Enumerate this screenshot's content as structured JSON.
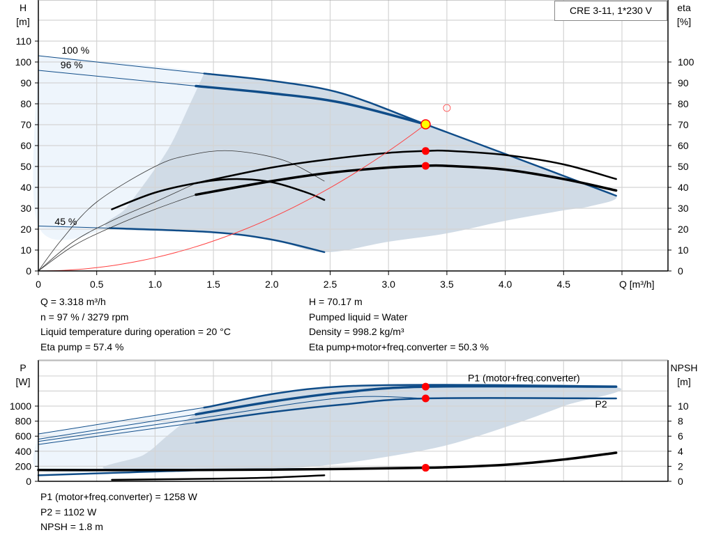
{
  "legend_box": "CRE 3-11, 1*230 V",
  "info_left": [
    "Q = 3.318 m³/h",
    "n = 97 % / 3279 rpm",
    "Liquid temperature during operation = 20 °C",
    "Eta pump = 57.4 %"
  ],
  "info_right": [
    "H = 70.17 m",
    "Pumped liquid = Water",
    "Density = 998.2 kg/m³",
    "Eta pump+motor+freq.converter = 50.3 %"
  ],
  "info_bottom": [
    "P1 (motor+freq.converter) = 1258 W",
    "P2 = 1102 W",
    "NPSH = 1.8 m"
  ],
  "colors": {
    "curve_blue": "#0f4c88",
    "area_dark": "#d0dbe6",
    "area_light": "#eef5fc",
    "duty_point": "#ffff00",
    "marker": "#ff0000",
    "system_curve": "#ff4040",
    "grid": "#d4d4d4"
  },
  "chart_data": [
    {
      "type": "line",
      "title": "",
      "ylabel": "H",
      "yunit": "[m]",
      "y2label": "eta",
      "y2unit": "[%]",
      "xlabel": "Q [m³/h]",
      "xlim": [
        0,
        5.4
      ],
      "ylim": [
        0,
        130
      ],
      "y2lim": [
        0,
        130
      ],
      "xticks": [
        "0",
        "0.5",
        "1.0",
        "1.5",
        "2.0",
        "2.5",
        "3.0",
        "3.5",
        "4.0",
        "4.5"
      ],
      "xtick_values": [
        0,
        0.5,
        1.0,
        1.5,
        2.0,
        2.5,
        3.0,
        3.5,
        4.0,
        4.5
      ],
      "yticks": [
        0,
        10,
        20,
        30,
        40,
        50,
        60,
        70,
        80,
        90,
        100,
        110
      ],
      "y2ticks": [
        0,
        10,
        20,
        30,
        40,
        50,
        60,
        70,
        80,
        90,
        100
      ],
      "grid": true,
      "curve_labels": [
        {
          "text": "100 %",
          "x": 0.2,
          "y": 104
        },
        {
          "text": "96 %",
          "x": 0.19,
          "y": 97
        },
        {
          "text": "45 %",
          "x": 0.14,
          "y": 22
        }
      ],
      "areas": [
        {
          "kind": "light",
          "points": [
            [
              0,
              103
            ],
            [
              1.42,
              94.5
            ],
            [
              1.3,
              80
            ],
            [
              1.13,
              60
            ],
            [
              0.95,
              45
            ],
            [
              0.75,
              30
            ],
            [
              0.61,
              20.5
            ],
            [
              0,
              21.5
            ]
          ]
        },
        {
          "kind": "dark",
          "points": [
            [
              1.42,
              94.5
            ],
            [
              2.0,
              91
            ],
            [
              2.6,
              85
            ],
            [
              3.318,
              70.17
            ],
            [
              4.0,
              56
            ],
            [
              4.5,
              45.5
            ],
            [
              4.95,
              36
            ],
            [
              4.73,
              31
            ],
            [
              4.5,
              29
            ],
            [
              4.0,
              24
            ],
            [
              3.5,
              18
            ],
            [
              3.0,
              14
            ],
            [
              2.45,
              9
            ],
            [
              2.0,
              15
            ],
            [
              1.5,
              18.5
            ],
            [
              0.61,
              20.5
            ],
            [
              0.75,
              30
            ],
            [
              0.95,
              45
            ],
            [
              1.13,
              60
            ],
            [
              1.3,
              80
            ]
          ]
        }
      ],
      "series": [
        {
          "id": "h-100-thin",
          "style": "blue-thin",
          "points": [
            [
              0,
              103
            ],
            [
              1.42,
              94.5
            ]
          ]
        },
        {
          "id": "h-100",
          "style": "blue",
          "points": [
            [
              1.42,
              94.5
            ],
            [
              2.0,
              91
            ],
            [
              2.6,
              85
            ],
            [
              3.318,
              70.17
            ],
            [
              4.0,
              56
            ],
            [
              4.5,
              45.5
            ],
            [
              4.95,
              36
            ]
          ]
        },
        {
          "id": "h-96-thin",
          "style": "blue-thin",
          "points": [
            [
              0,
              96
            ],
            [
              1.35,
              88.5
            ]
          ]
        },
        {
          "id": "h-96",
          "style": "blue-thick",
          "points": [
            [
              1.35,
              88.5
            ],
            [
              2.0,
              85
            ],
            [
              2.6,
              80.5
            ],
            [
              3.318,
              70.17
            ]
          ]
        },
        {
          "id": "h-45-thin",
          "style": "blue-thin",
          "points": [
            [
              0,
              21.5
            ],
            [
              0.61,
              20.5
            ]
          ]
        },
        {
          "id": "h-45",
          "style": "blue",
          "points": [
            [
              0.61,
              20.5
            ],
            [
              1.5,
              18.5
            ],
            [
              2.0,
              15
            ],
            [
              2.45,
              9
            ]
          ]
        },
        {
          "id": "eta-thin-a",
          "style": "black-hair",
          "points": [
            [
              0,
              0
            ],
            [
              0.2,
              15
            ],
            [
              0.5,
              33
            ],
            [
              1.0,
              50
            ],
            [
              1.3,
              55.5
            ],
            [
              1.65,
              57.5
            ],
            [
              2.1,
              53
            ],
            [
              2.45,
              43
            ]
          ]
        },
        {
          "id": "eta-thin-b",
          "style": "black-hair",
          "points": [
            [
              0,
              0
            ],
            [
              0.3,
              14
            ],
            [
              0.63,
              24
            ],
            [
              1.0,
              33
            ],
            [
              1.35,
              42
            ]
          ]
        },
        {
          "id": "eta-thin-c",
          "style": "black-hair",
          "points": [
            [
              0,
              0
            ],
            [
              0.3,
              12
            ],
            [
              0.63,
              21
            ],
            [
              1.0,
              29.5
            ],
            [
              1.35,
              36.5
            ]
          ]
        },
        {
          "id": "eta-45",
          "style": "black",
          "points": [
            [
              0.63,
              29.5
            ],
            [
              1.0,
              37.5
            ],
            [
              1.4,
              42.5
            ],
            [
              1.7,
              44
            ],
            [
              2.0,
              42.5
            ],
            [
              2.3,
              37.5
            ],
            [
              2.45,
              34
            ]
          ]
        },
        {
          "id": "eta-pump",
          "style": "black",
          "points": [
            [
              1.35,
              42
            ],
            [
              2.0,
              49.5
            ],
            [
              2.5,
              53.5
            ],
            [
              3.0,
              56.5
            ],
            [
              3.318,
              57.4
            ],
            [
              3.5,
              57.5
            ],
            [
              4.0,
              55.5
            ],
            [
              4.5,
              51
            ],
            [
              4.95,
              44
            ]
          ]
        },
        {
          "id": "eta-total",
          "style": "black-thick",
          "points": [
            [
              1.35,
              36.5
            ],
            [
              2.0,
              43
            ],
            [
              2.5,
              47
            ],
            [
              3.0,
              49.5
            ],
            [
              3.318,
              50.3
            ],
            [
              3.5,
              50.3
            ],
            [
              4.0,
              48.5
            ],
            [
              4.5,
              44
            ],
            [
              4.95,
              38.5
            ]
          ]
        },
        {
          "id": "system-curve",
          "style": "red",
          "quadratic_k": 6.374,
          "x_range": [
            0,
            3.318
          ]
        }
      ],
      "markers": [
        {
          "name": "duty-point",
          "x": 3.318,
          "y": 70.17,
          "kind": "yellow"
        },
        {
          "name": "eta-pump-point",
          "x": 3.318,
          "y": 57.4,
          "kind": "red"
        },
        {
          "name": "eta-total-point",
          "x": 3.318,
          "y": 50.3,
          "kind": "red"
        },
        {
          "name": "requested-point",
          "x": 3.5,
          "y": 78,
          "kind": "hollow"
        }
      ]
    },
    {
      "type": "line",
      "title": "",
      "ylabel": "P",
      "yunit": "[W]",
      "y2label": "NPSH",
      "y2unit": "[m]",
      "xlim": [
        0,
        5.4
      ],
      "ylim": [
        0,
        1600
      ],
      "y2lim": [
        0,
        16
      ],
      "yticks": [
        0,
        200,
        400,
        600,
        800,
        1000
      ],
      "y2ticks": [
        0,
        2,
        4,
        6,
        8,
        10
      ],
      "grid": true,
      "series_labels": [
        {
          "text": "P1 (motor+freq.converter)",
          "x": 3.68,
          "y": 1330
        },
        {
          "text": "P2",
          "x": 4.77,
          "y": 980
        }
      ],
      "areas": [
        {
          "kind": "light",
          "points": [
            [
              0,
              630
            ],
            [
              1.42,
              980
            ],
            [
              1.3,
              850
            ],
            [
              1.1,
              600
            ],
            [
              0.9,
              350
            ],
            [
              0.6,
              160
            ],
            [
              0,
              150
            ]
          ]
        },
        {
          "kind": "dark",
          "points": [
            [
              1.42,
              980
            ],
            [
              2.6,
              1262
            ],
            [
              4.9,
              1262
            ],
            [
              4.5,
              1000
            ],
            [
              4.0,
              720
            ],
            [
              3.5,
              480
            ],
            [
              3.0,
              330
            ],
            [
              2.5,
              220
            ],
            [
              2.0,
              170
            ],
            [
              0.6,
              160
            ],
            [
              0.9,
              350
            ],
            [
              1.1,
              600
            ],
            [
              1.3,
              850
            ]
          ]
        }
      ],
      "series": [
        {
          "id": "p1-100-thin",
          "style": "blue-thin",
          "points": [
            [
              0,
              630
            ],
            [
              1.42,
              980
            ]
          ]
        },
        {
          "id": "p1-100",
          "style": "blue",
          "points": [
            [
              1.42,
              980
            ],
            [
              2.6,
              1262
            ],
            [
              4.95,
              1262
            ]
          ]
        },
        {
          "id": "p1-96-thin",
          "style": "blue-thin",
          "points": [
            [
              0,
              560
            ],
            [
              1.35,
              890
            ]
          ]
        },
        {
          "id": "p1-96",
          "style": "blue-thick",
          "points": [
            [
              1.35,
              890
            ],
            [
              2.0,
              1060
            ],
            [
              2.6,
              1180
            ],
            [
              3.318,
              1258
            ],
            [
              4.95,
              1258
            ]
          ]
        },
        {
          "id": "p2-100-thin",
          "style": "blue-thin",
          "points": [
            [
              0,
              530
            ],
            [
              1.35,
              830
            ],
            [
              2.6,
              1110
            ],
            [
              3.318,
              1102
            ]
          ]
        },
        {
          "id": "p2-thin",
          "style": "blue-thin",
          "points": [
            [
              0,
              490
            ],
            [
              1.35,
              780
            ]
          ]
        },
        {
          "id": "p2",
          "style": "blue",
          "points": [
            [
              1.35,
              780
            ],
            [
              2.0,
              920
            ],
            [
              2.6,
              1020
            ],
            [
              3.318,
              1102
            ],
            [
              4.95,
              1102
            ]
          ]
        },
        {
          "id": "p1-45",
          "style": "blue",
          "points": [
            [
              0,
              80
            ],
            [
              0.6,
              110
            ],
            [
              1.5,
              150
            ],
            [
              2.45,
              165
            ]
          ]
        },
        {
          "id": "npsh-45",
          "style": "black",
          "npsh": true,
          "points": [
            [
              0.63,
              0.2
            ],
            [
              1.5,
              0.35
            ],
            [
              2.0,
              0.5
            ],
            [
              2.45,
              0.8
            ]
          ]
        },
        {
          "id": "npsh",
          "style": "black-thick",
          "npsh": true,
          "points": [
            [
              0,
              1.5
            ],
            [
              1.0,
              1.5
            ],
            [
              2.0,
              1.55
            ],
            [
              3.318,
              1.8
            ],
            [
              4.0,
              2.2
            ],
            [
              4.5,
              2.9
            ],
            [
              4.95,
              3.8
            ]
          ]
        }
      ],
      "markers": [
        {
          "name": "p1-point",
          "x": 3.318,
          "y": 1258,
          "kind": "red"
        },
        {
          "name": "p2-point",
          "x": 3.318,
          "y": 1102,
          "kind": "red"
        },
        {
          "name": "npsh-point",
          "x": 3.318,
          "y": 1.8,
          "kind": "red",
          "npsh": true
        }
      ]
    }
  ]
}
